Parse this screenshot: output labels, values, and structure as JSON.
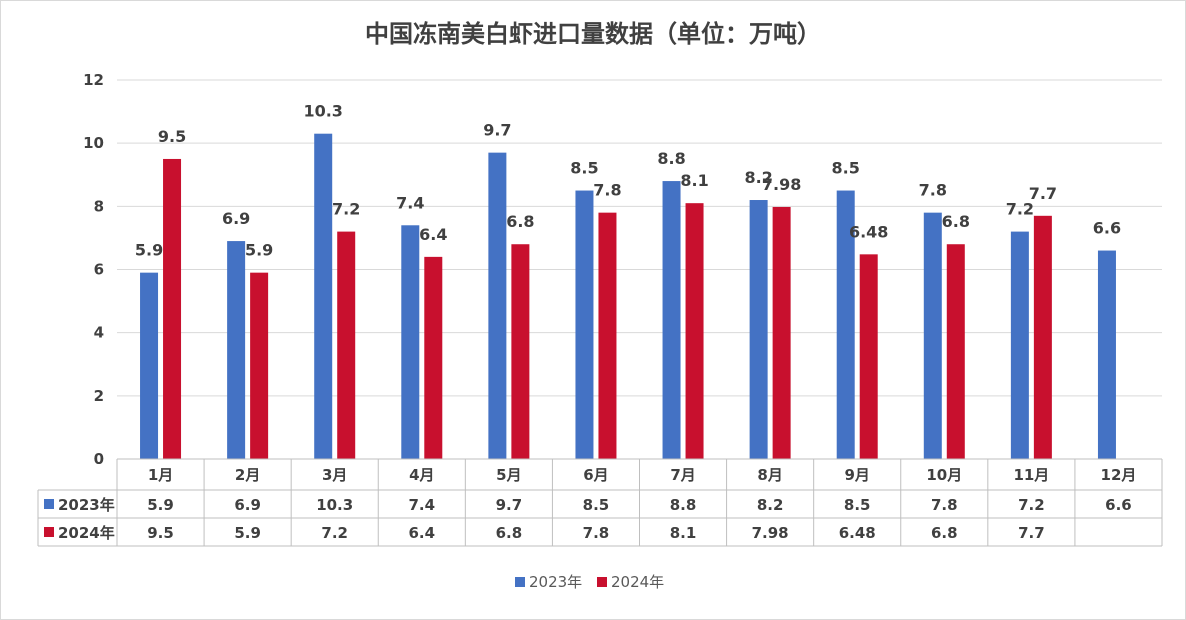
{
  "chart_data": {
    "type": "bar",
    "title": "中国冻南美白虾进口量数据（单位：万吨）",
    "categories": [
      "1月",
      "2月",
      "3月",
      "4月",
      "5月",
      "6月",
      "7月",
      "8月",
      "9月",
      "10月",
      "11月",
      "12月"
    ],
    "series": [
      {
        "name": "2023年",
        "color": "#4472c4",
        "values": [
          5.9,
          6.9,
          10.3,
          7.4,
          9.7,
          8.5,
          8.8,
          8.2,
          8.5,
          7.8,
          7.2,
          6.6
        ]
      },
      {
        "name": "2024年",
        "color": "#c8102e",
        "values": [
          9.5,
          5.9,
          7.2,
          6.4,
          6.8,
          7.8,
          8.1,
          7.98,
          6.48,
          6.8,
          7.7,
          null
        ]
      }
    ],
    "value_labels": [
      [
        "5.9",
        "6.9",
        "10.3",
        "7.4",
        "9.7",
        "8.5",
        "8.8",
        "8.2",
        "8.5",
        "7.8",
        "7.2",
        "6.6"
      ],
      [
        "9.5",
        "5.9",
        "7.2",
        "6.4",
        "6.8",
        "7.8",
        "8.1",
        "7.98",
        "6.48",
        "6.8",
        "7.7",
        ""
      ]
    ],
    "ylim": [
      0,
      12
    ],
    "yticks": [
      "0",
      "2",
      "4",
      "6",
      "8",
      "10",
      "12"
    ],
    "grid": true,
    "legend": "bottom",
    "data_table": true
  }
}
